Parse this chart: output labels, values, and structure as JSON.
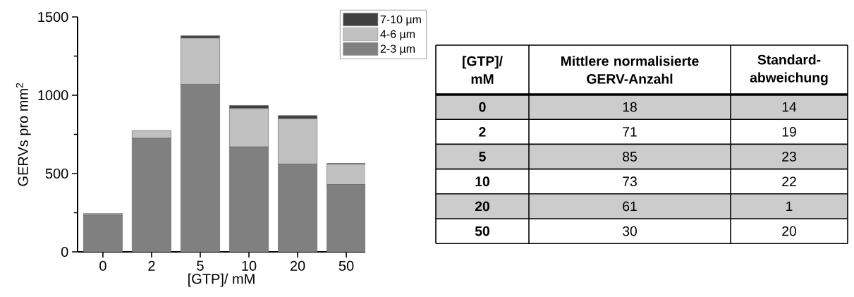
{
  "chart_data": [
    {
      "type": "bar",
      "stacked": true,
      "xlabel": "[GTP]/ mM",
      "ylabel": "GERVs pro mm$^{2}$",
      "categories": [
        "0",
        "2",
        "5",
        "10",
        "20",
        "50"
      ],
      "series": [
        {
          "name": "2-3 µm",
          "color": "#808080",
          "values": [
            235,
            725,
            1070,
            670,
            560,
            430
          ]
        },
        {
          "name": "4-6 µm",
          "color": "#c0c0c0",
          "values": [
            10,
            50,
            295,
            245,
            290,
            130
          ]
        },
        {
          "name": "7-10 µm",
          "color": "#404040",
          "values": [
            0,
            0,
            15,
            20,
            20,
            5
          ]
        }
      ],
      "ylim": [
        0,
        1500
      ],
      "yticks": [
        0,
        500,
        1000,
        1500
      ],
      "legend": "top right"
    },
    {
      "type": "other",
      "annotations": [
        "[GTP]/ mM",
        "Mittlere normalisierte GERV-Anzahl",
        "Standard-abweichung",
        "0",
        "18",
        "14",
        "2",
        "71",
        "19",
        "5",
        "85",
        "23",
        "10",
        "73",
        "22",
        "20",
        "61",
        "1",
        "50",
        "30",
        "20"
      ]
    }
  ]
}
